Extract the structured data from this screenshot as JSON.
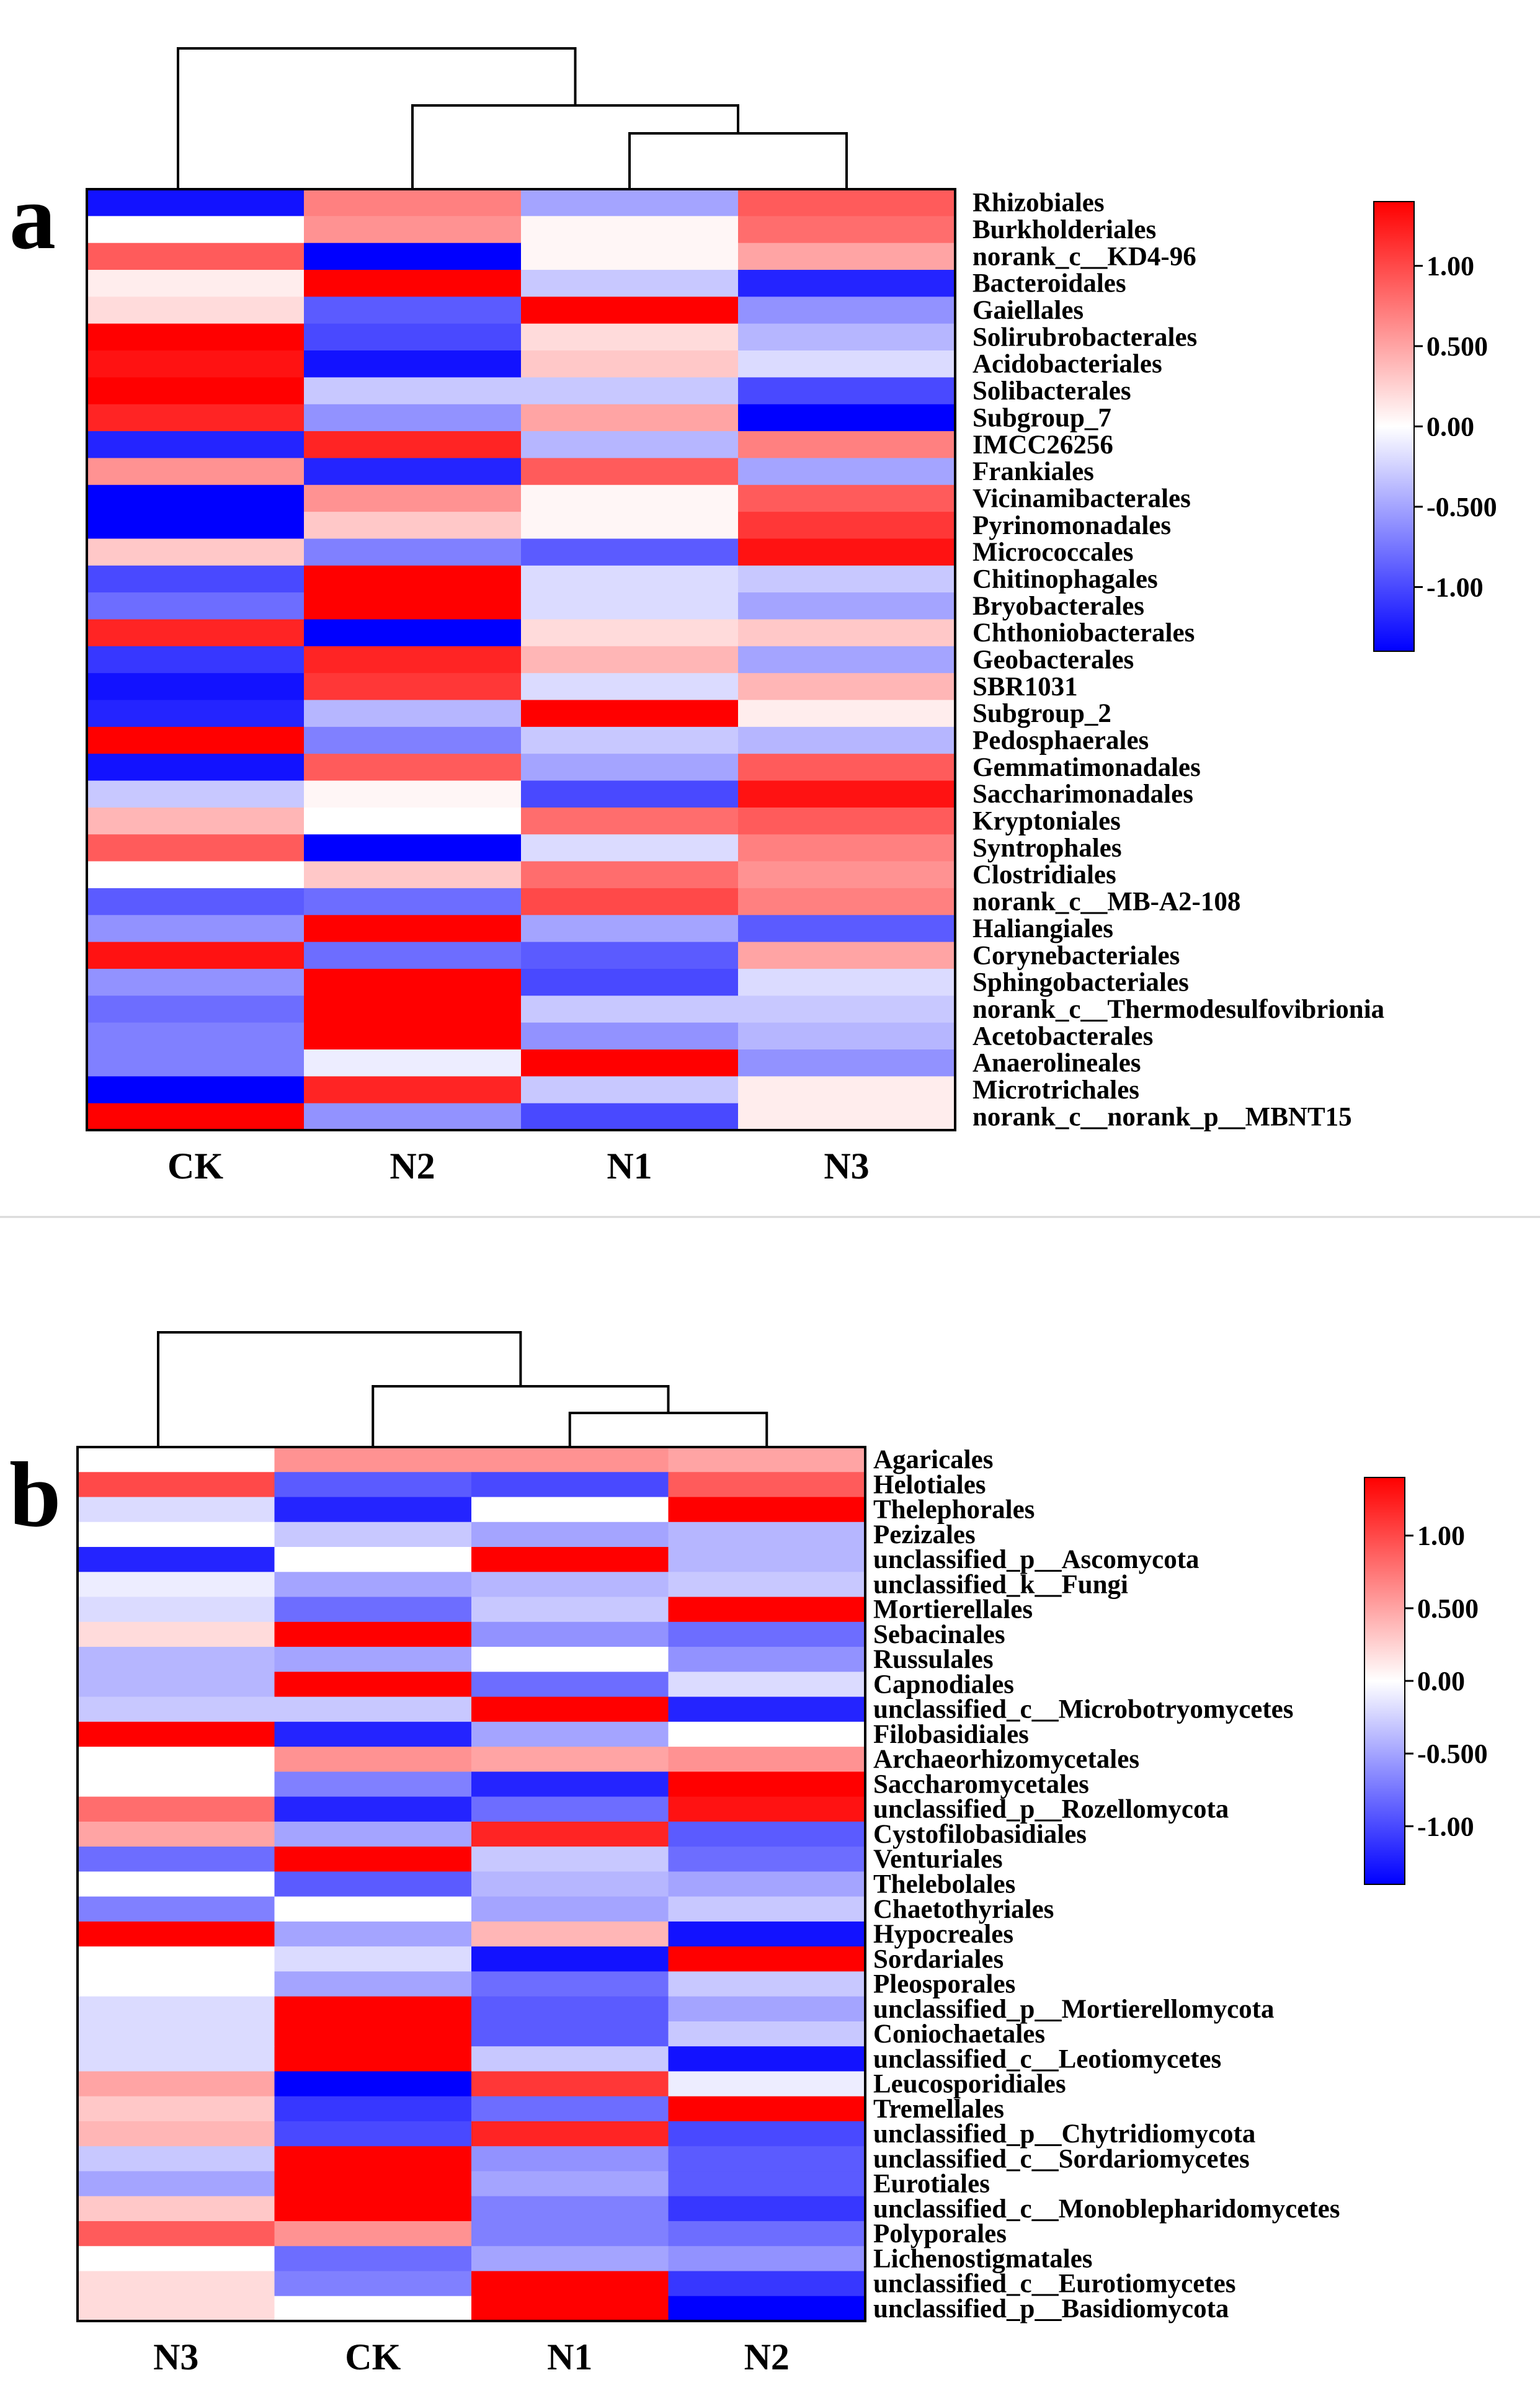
{
  "chart_data": [
    {
      "type": "heatmap",
      "panel_label": "a",
      "columns": [
        "CK",
        "N2",
        "N1",
        "N3"
      ],
      "rows": [
        "Rhizobiales",
        "Burkholderiales",
        "norank_c__KD4-96",
        "Bacteroidales",
        "Gaiellales",
        "Solirubrobacterales",
        "Acidobacteriales",
        "Solibacterales",
        "Subgroup_7",
        "IMCC26256",
        "Frankiales",
        "Vicinamibacterales",
        "Pyrinomonadales",
        "Micrococcales",
        "Chitinophagales",
        "Bryobacterales",
        "Chthoniobacterales",
        "Geobacterales",
        "SBR1031",
        "Subgroup_2",
        "Pedosphaerales",
        "Gemmatimonadales",
        "Saccharimonadales",
        "Kryptoniales",
        "Syntrophales",
        "Clostridiales",
        "norank_c__MB-A2-108",
        "Haliangiales",
        "Corynebacteriales",
        "Sphingobacteriales",
        "norank_c__Thermodesulfovibrionia",
        "Acetobacterales",
        "Anaerolineales",
        "Microtrichales",
        "norank_c__norank_p__MBNT15"
      ],
      "values": [
        [
          -1.3,
          0.7,
          -0.5,
          0.9
        ],
        [
          0.0,
          0.6,
          0.05,
          0.8
        ],
        [
          0.9,
          -1.4,
          0.05,
          0.5
        ],
        [
          0.1,
          1.4,
          -0.3,
          -1.2
        ],
        [
          0.2,
          -0.9,
          1.4,
          -0.6
        ],
        [
          1.4,
          -1.0,
          0.2,
          -0.4
        ],
        [
          1.3,
          -1.3,
          0.3,
          -0.2
        ],
        [
          1.4,
          -0.3,
          -0.3,
          -1.0
        ],
        [
          1.2,
          -0.6,
          0.5,
          -1.4
        ],
        [
          -1.2,
          1.2,
          -0.4,
          0.7
        ],
        [
          0.6,
          -1.2,
          0.9,
          -0.5
        ],
        [
          -1.5,
          0.6,
          0.05,
          0.9
        ],
        [
          -1.5,
          0.3,
          0.05,
          1.1
        ],
        [
          0.3,
          -0.7,
          -0.9,
          1.3
        ],
        [
          -1.0,
          1.4,
          -0.2,
          -0.3
        ],
        [
          -0.8,
          1.4,
          -0.2,
          -0.5
        ],
        [
          1.2,
          -1.4,
          0.2,
          0.3
        ],
        [
          -1.1,
          1.2,
          0.4,
          -0.5
        ],
        [
          -1.3,
          1.1,
          -0.2,
          0.4
        ],
        [
          -1.2,
          -0.4,
          1.4,
          0.1
        ],
        [
          1.4,
          -0.7,
          -0.3,
          -0.4
        ],
        [
          -1.3,
          0.9,
          -0.5,
          0.9
        ],
        [
          -0.3,
          0.05,
          -1.0,
          1.3
        ],
        [
          0.4,
          0.0,
          0.8,
          0.9
        ],
        [
          0.9,
          -1.4,
          -0.2,
          0.7
        ],
        [
          0.0,
          0.3,
          0.8,
          0.6
        ],
        [
          -0.9,
          -0.8,
          1.0,
          0.7
        ],
        [
          -0.6,
          1.4,
          -0.5,
          -0.9
        ],
        [
          1.3,
          -0.8,
          -0.9,
          0.5
        ],
        [
          -0.6,
          1.4,
          -1.0,
          -0.2
        ],
        [
          -0.8,
          1.4,
          -0.3,
          -0.3
        ],
        [
          -0.7,
          1.4,
          -0.6,
          -0.4
        ],
        [
          -0.7,
          -0.1,
          1.4,
          -0.6
        ],
        [
          -1.4,
          1.2,
          -0.3,
          0.1
        ],
        [
          1.4,
          -0.6,
          -1.0,
          0.1
        ]
      ],
      "colorbar": {
        "ticks": [
          "1.00",
          "0.500",
          "0.00",
          "-0.500",
          "-1.00"
        ],
        "min": -1.4,
        "max": 1.4,
        "colors": [
          "#0000ff",
          "#ffffff",
          "#ff0000"
        ]
      },
      "dendrogram": "CK joins last with ((N2), (N1, N3))"
    },
    {
      "type": "heatmap",
      "panel_label": "b",
      "columns": [
        "N3",
        "CK",
        "N1",
        "N2"
      ],
      "rows": [
        "Agaricales",
        "Helotiales",
        "Thelephorales",
        "Pezizales",
        "unclassified_p__Ascomycota",
        "unclassified_k__Fungi",
        "Mortierellales",
        "Sebacinales",
        "Russulales",
        "Capnodiales",
        "unclassified_c__Microbotryomycetes",
        "Filobasidiales",
        "Archaeorhizomycetales",
        "Saccharomycetales",
        "unclassified_p__Rozellomycota",
        "Cystofilobasidiales",
        "Venturiales",
        "Thelebolales",
        "Chaetothyriales",
        "Hypocreales",
        "Sordariales",
        "Pleosporales",
        "unclassified_p__Mortierellomycota",
        "Coniochaetales",
        "unclassified_c__Leotiomycetes",
        "Leucosporidiales",
        "Tremellales",
        "unclassified_p__Chytridiomycota",
        "unclassified_c__Sordariomycetes",
        "Eurotiales",
        "unclassified_c__Monoblepharidomycetes",
        "Polyporales",
        "Lichenostigmatales",
        "unclassified_c__Eurotiomycetes",
        "unclassified_p__Basidiomycota"
      ],
      "values": [
        [
          0.0,
          0.6,
          0.6,
          0.5
        ],
        [
          1.0,
          -0.9,
          -1.0,
          0.9
        ],
        [
          -0.2,
          -1.2,
          0.0,
          1.4
        ],
        [
          0.0,
          -0.3,
          -0.5,
          -0.4
        ],
        [
          -1.2,
          0.0,
          1.4,
          -0.4
        ],
        [
          -0.1,
          -0.5,
          -0.4,
          -0.3
        ],
        [
          -0.2,
          -0.8,
          -0.3,
          1.4
        ],
        [
          0.2,
          1.4,
          -0.6,
          -0.8
        ],
        [
          -0.4,
          -0.5,
          0.0,
          -0.6
        ],
        [
          -0.4,
          1.4,
          -0.8,
          -0.2
        ],
        [
          -0.3,
          -0.3,
          1.4,
          -1.2
        ],
        [
          1.4,
          -1.2,
          -0.5,
          0.0
        ],
        [
          0.0,
          0.6,
          0.5,
          0.6
        ],
        [
          0.0,
          -0.7,
          -1.2,
          1.4
        ],
        [
          0.8,
          -1.2,
          -0.8,
          1.3
        ],
        [
          0.5,
          -0.5,
          1.2,
          -0.9
        ],
        [
          -0.8,
          1.4,
          -0.3,
          -0.8
        ],
        [
          0.0,
          -0.9,
          -0.4,
          -0.5
        ],
        [
          -0.7,
          0.0,
          -0.5,
          -0.3
        ],
        [
          1.4,
          -0.5,
          0.4,
          -1.3
        ],
        [
          0.0,
          -0.2,
          -1.3,
          1.4
        ],
        [
          0.0,
          -0.5,
          -0.8,
          -0.3
        ],
        [
          -0.2,
          1.4,
          -0.9,
          -0.5
        ],
        [
          -0.2,
          1.4,
          -0.9,
          -0.3
        ],
        [
          -0.2,
          1.4,
          -0.3,
          -1.3
        ],
        [
          0.5,
          -1.4,
          1.1,
          -0.1
        ],
        [
          0.3,
          -1.1,
          -0.8,
          1.4
        ],
        [
          0.4,
          -1.0,
          1.2,
          -1.0
        ],
        [
          -0.3,
          1.4,
          -0.6,
          -0.9
        ],
        [
          -0.5,
          1.4,
          -0.5,
          -0.9
        ],
        [
          0.3,
          1.4,
          -0.7,
          -1.1
        ],
        [
          0.9,
          0.6,
          -0.7,
          -0.8
        ],
        [
          0.0,
          -0.8,
          -0.5,
          -0.6
        ],
        [
          0.2,
          -0.7,
          1.4,
          -1.1
        ],
        [
          0.2,
          0.0,
          1.4,
          -1.4
        ]
      ],
      "colorbar": {
        "ticks": [
          "1.00",
          "0.500",
          "0.00",
          "-0.500",
          "-1.00"
        ],
        "min": -1.4,
        "max": 1.4,
        "colors": [
          "#0000ff",
          "#ffffff",
          "#ff0000"
        ]
      },
      "dendrogram": "N3 joins last with ((CK), (N1, N2))"
    }
  ]
}
